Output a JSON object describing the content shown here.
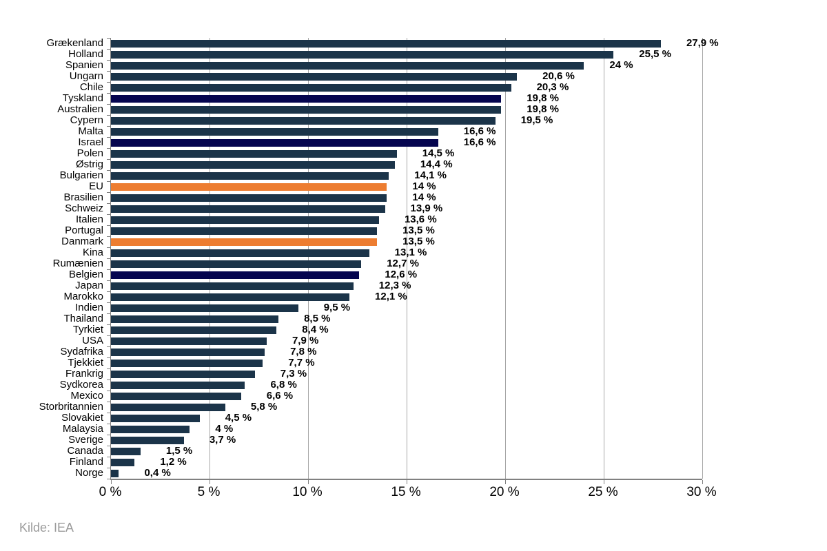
{
  "source_note": "Kilde: IEA",
  "colors": {
    "bar_default": "#1B3449",
    "bar_navy": "#05054F",
    "bar_orange": "#ED7D31",
    "gridline": "#A6A6A6",
    "axis": "#808080",
    "value_label": "#000000",
    "source_text": "#9B9B9B"
  },
  "chart_data": {
    "type": "bar",
    "orientation": "horizontal",
    "title": "",
    "xlabel": "",
    "ylabel": "",
    "xlim": [
      0,
      30
    ],
    "grid": true,
    "xticks": {
      "values": [
        0,
        5,
        10,
        15,
        20,
        25,
        30
      ],
      "labels": [
        "0 %",
        "5 %",
        "10 %",
        "15 %",
        "20 %",
        "25 %",
        "30 %"
      ]
    },
    "bars": [
      {
        "label": "Grækenland",
        "value": 27.9,
        "display": "27,9 %",
        "color": "default"
      },
      {
        "label": "Holland",
        "value": 25.5,
        "display": "25,5 %",
        "color": "default"
      },
      {
        "label": "Spanien",
        "value": 24.0,
        "display": "24 %",
        "color": "default"
      },
      {
        "label": "Ungarn",
        "value": 20.6,
        "display": "20,6 %",
        "color": "default"
      },
      {
        "label": "Chile",
        "value": 20.3,
        "display": "20,3 %",
        "color": "default"
      },
      {
        "label": "Tyskland",
        "value": 19.8,
        "display": "19,8 %",
        "color": "navy"
      },
      {
        "label": "Australien",
        "value": 19.8,
        "display": "19,8 %",
        "color": "default"
      },
      {
        "label": "Cypern",
        "value": 19.5,
        "display": "19,5 %",
        "color": "default"
      },
      {
        "label": "Malta",
        "value": 16.6,
        "display": "16,6 %",
        "color": "default"
      },
      {
        "label": "Israel",
        "value": 16.6,
        "display": "16,6 %",
        "color": "navy"
      },
      {
        "label": "Polen",
        "value": 14.5,
        "display": "14,5 %",
        "color": "default"
      },
      {
        "label": "Østrig",
        "value": 14.4,
        "display": "14,4 %",
        "color": "default"
      },
      {
        "label": "Bulgarien",
        "value": 14.1,
        "display": "14,1 %",
        "color": "default"
      },
      {
        "label": "EU",
        "value": 14.0,
        "display": "14 %",
        "color": "orange"
      },
      {
        "label": "Brasilien",
        "value": 14.0,
        "display": "14 %",
        "color": "default"
      },
      {
        "label": "Schweiz",
        "value": 13.9,
        "display": "13,9 %",
        "color": "default"
      },
      {
        "label": "Italien",
        "value": 13.6,
        "display": "13,6 %",
        "color": "default"
      },
      {
        "label": "Portugal",
        "value": 13.5,
        "display": "13,5 %",
        "color": "default"
      },
      {
        "label": "Danmark",
        "value": 13.5,
        "display": "13,5 %",
        "color": "orange"
      },
      {
        "label": "Kina",
        "value": 13.1,
        "display": "13,1 %",
        "color": "default"
      },
      {
        "label": "Rumænien",
        "value": 12.7,
        "display": "12,7 %",
        "color": "default"
      },
      {
        "label": "Belgien",
        "value": 12.6,
        "display": "12,6 %",
        "color": "navy"
      },
      {
        "label": "Japan",
        "value": 12.3,
        "display": "12,3 %",
        "color": "default"
      },
      {
        "label": "Marokko",
        "value": 12.1,
        "display": "12,1 %",
        "color": "default"
      },
      {
        "label": "Indien",
        "value": 9.5,
        "display": "9,5 %",
        "color": "default"
      },
      {
        "label": "Thailand",
        "value": 8.5,
        "display": "8,5 %",
        "color": "default"
      },
      {
        "label": "Tyrkiet",
        "value": 8.4,
        "display": "8,4 %",
        "color": "default"
      },
      {
        "label": "USA",
        "value": 7.9,
        "display": "7,9 %",
        "color": "default"
      },
      {
        "label": "Sydafrika",
        "value": 7.8,
        "display": "7,8 %",
        "color": "default"
      },
      {
        "label": "Tjekkiet",
        "value": 7.7,
        "display": "7,7 %",
        "color": "default"
      },
      {
        "label": "Frankrig",
        "value": 7.3,
        "display": "7,3 %",
        "color": "default"
      },
      {
        "label": "Sydkorea",
        "value": 6.8,
        "display": "6,8 %",
        "color": "default"
      },
      {
        "label": "Mexico",
        "value": 6.6,
        "display": "6,6 %",
        "color": "default"
      },
      {
        "label": "Storbritannien",
        "value": 5.8,
        "display": "5,8 %",
        "color": "default"
      },
      {
        "label": "Slovakiet",
        "value": 4.5,
        "display": "4,5 %",
        "color": "default"
      },
      {
        "label": "Malaysia",
        "value": 4.0,
        "display": "4 %",
        "color": "default"
      },
      {
        "label": "Sverige",
        "value": 3.7,
        "display": "3,7 %",
        "color": "default"
      },
      {
        "label": "Canada",
        "value": 1.5,
        "display": "1,5 %",
        "color": "default"
      },
      {
        "label": "Finland",
        "value": 1.2,
        "display": "1,2 %",
        "color": "default"
      },
      {
        "label": "Norge",
        "value": 0.4,
        "display": "0,4 %",
        "color": "default"
      }
    ]
  }
}
